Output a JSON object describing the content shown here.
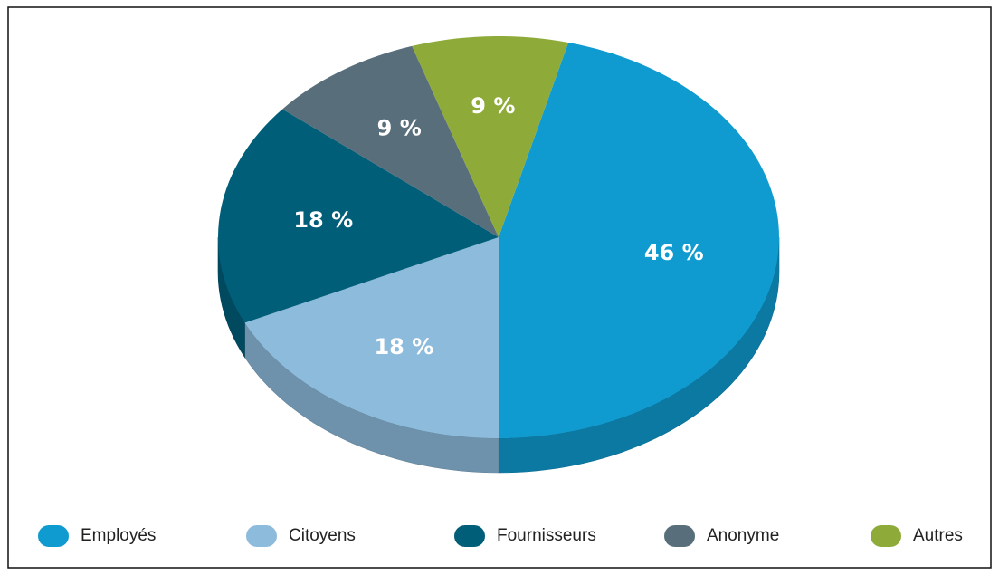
{
  "chart_data": {
    "type": "pie",
    "categories": [
      "Employés",
      "Citoyens",
      "Fournisseurs",
      "Anonyme",
      "Autres"
    ],
    "values": [
      46,
      18,
      18,
      9,
      9
    ],
    "value_labels": [
      "46 %",
      "18 %",
      "18 %",
      "9 %",
      "9 %"
    ],
    "colors": [
      "#0f9bd0",
      "#8dbbdc",
      "#005e79",
      "#586f7b",
      "#8eab3a"
    ],
    "legend": "bottom"
  }
}
